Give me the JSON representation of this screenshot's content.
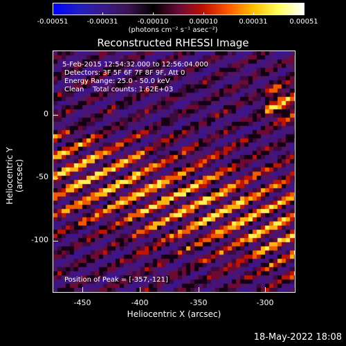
{
  "colorbar": {
    "labels": [
      "-0.00051",
      "-0.00031",
      "-0.00010",
      "0.00010",
      "0.00031",
      "0.00051"
    ],
    "units": "(photons cm⁻² s⁻¹ asec⁻²)",
    "stops": [
      "#0000ff",
      "#2020c0",
      "#3a1a8a",
      "#3c1450",
      "#000000",
      "#6b0a3a",
      "#c01000",
      "#ff5a00",
      "#ffc000",
      "#ffff60",
      "#ffffff"
    ]
  },
  "title": "Reconstructed RHESSI Image",
  "annotations": {
    "time": " 5-Feb-2015 12:54:32.000 to 12:56:04.000",
    "detectors": "Detectors: 3F 5F 6F 7F 8F 9F, Att 0",
    "energy": "Energy Range: 25.0 - 50.0 keV",
    "clean": "Clean    Total counts: 1.62E+03",
    "peak": "Position of Peak = [-357,-121]"
  },
  "axes": {
    "xlabel": "Heliocentric X (arcsec)",
    "ylabel": "Heliocentric Y (arcsec)",
    "xticks": [
      "-450",
      "-400",
      "-350",
      "-300"
    ],
    "yticks": [
      "0",
      "-50",
      "-100"
    ]
  },
  "datestamp": "18-May-2022 18:08"
}
